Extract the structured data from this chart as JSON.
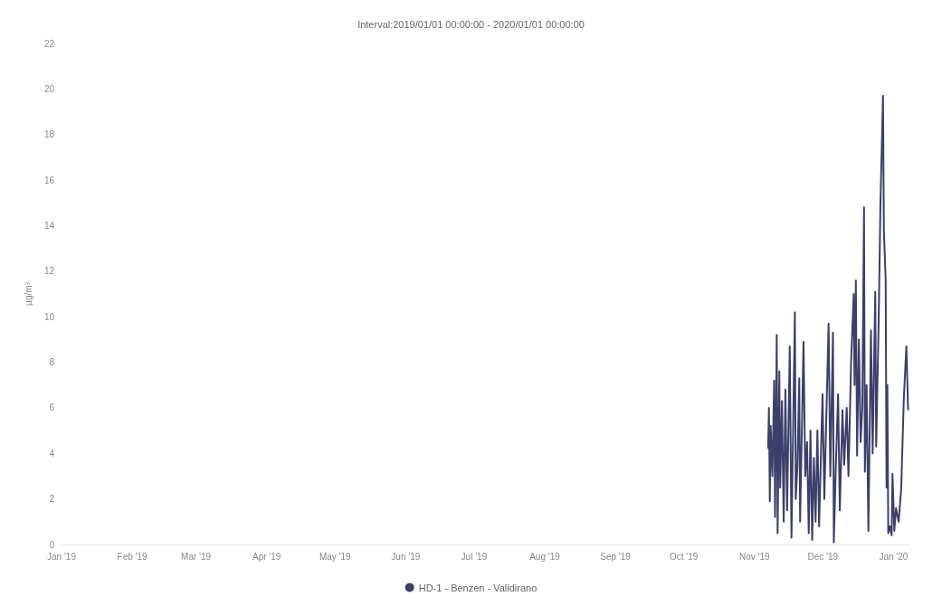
{
  "chart_data": {
    "type": "line",
    "title": "Interval:2019/01/01 00:00:00 - 2020/01/01 00:00:00",
    "ylabel": "µg/m³",
    "x": [
      "2019-11-07T00:00",
      "2019-11-07T09:00",
      "2019-11-07T18:00",
      "2019-11-08T03:00",
      "2019-11-08T21:00",
      "2019-11-09T16:00",
      "2019-11-10T01:00",
      "2019-11-10T19:00",
      "2019-11-11T04:00",
      "2019-11-11T22:00",
      "2019-11-12T07:00",
      "2019-11-13T02:00",
      "2019-11-13T20:00",
      "2019-11-14T14:00",
      "2019-11-15T08:00",
      "2019-11-16T12:00",
      "2019-11-17T06:00",
      "2019-11-18T18:00",
      "2019-11-19T03:00",
      "2019-11-19T21:00",
      "2019-11-20T16:00",
      "2019-11-21T01:00",
      "2019-11-22T13:00",
      "2019-11-23T07:00",
      "2019-11-24T02:00",
      "2019-11-24T20:00",
      "2019-11-25T14:00",
      "2019-11-26T08:00",
      "2019-11-27T02:00",
      "2019-11-27T20:00",
      "2019-11-28T15:00",
      "2019-11-29T09:00",
      "2019-11-30T21:00",
      "2019-12-01T16:00",
      "2019-12-03T13:00",
      "2019-12-04T07:00",
      "2019-12-05T11:00",
      "2019-12-05T20:00",
      "2019-12-06T14:00",
      "2019-12-07T17:00",
      "2019-12-08T11:00",
      "2019-12-09T15:00",
      "2019-12-10T09:00",
      "2019-12-11T12:00",
      "2019-12-12T06:00",
      "2019-12-13T10:00",
      "2019-12-14T13:00",
      "2019-12-14T22:00",
      "2019-12-15T12:00",
      "2019-12-16T01:00",
      "2019-12-16T20:00",
      "2019-12-17T14:00",
      "2019-12-18T08:00",
      "2019-12-19T02:00",
      "2019-12-19T11:00",
      "2019-12-20T05:00",
      "2019-12-21T00:00",
      "2019-12-22T03:00",
      "2019-12-22T21:00",
      "2019-12-24T00:00",
      "2019-12-24T10:00",
      "2019-12-25T13:00",
      "2019-12-26T07:00",
      "2019-12-27T10:00",
      "2019-12-27T19:00",
      "2019-12-28T14:00",
      "2019-12-28T23:00",
      "2019-12-29T08:00",
      "2019-12-29T17:00",
      "2019-12-30T11:00",
      "2019-12-31T05:00",
      "2019-12-31T14:00",
      "2020-01-01T09:00",
      "2020-01-02T03:00",
      "2020-01-03T06:00",
      "2020-01-04T09:00",
      "2020-01-05T13:00",
      "2020-01-06T16:00",
      "2020-01-07T10:00"
    ],
    "series": [
      {
        "name": "HD-1 - Benzen - Validirano",
        "color": "#3b3f6b",
        "values": [
          4.2,
          6.0,
          1.9,
          5.2,
          3.0,
          7.2,
          1.2,
          9.2,
          0.5,
          7.6,
          2.5,
          6.3,
          1.0,
          6.8,
          1.5,
          8.7,
          0.3,
          10.2,
          2.0,
          3.5,
          7.3,
          1.0,
          8.9,
          3.0,
          4.5,
          0.5,
          5.0,
          0.2,
          3.8,
          1.0,
          5.0,
          0.8,
          6.6,
          2.0,
          9.7,
          3.0,
          9.3,
          0.1,
          3.0,
          6.6,
          1.5,
          5.9,
          3.5,
          6.0,
          3.0,
          8.0,
          11.0,
          7.0,
          11.6,
          3.9,
          9.0,
          4.5,
          6.0,
          14.8,
          3.2,
          7.0,
          0.6,
          9.4,
          4.0,
          11.1,
          4.3,
          10.0,
          15.0,
          19.7,
          13.8,
          11.6,
          2.5,
          7.0,
          0.5,
          0.8,
          0.4,
          3.1,
          0.6,
          1.6,
          1.0,
          2.4,
          6.4,
          8.7,
          5.9
        ]
      }
    ],
    "xlim": [
      "2019-01-01",
      "2020-01-08"
    ],
    "xticks": [
      {
        "value": "2019-01-01",
        "label": "Jan '19"
      },
      {
        "value": "2019-02-01",
        "label": "Feb '19"
      },
      {
        "value": "2019-03-01",
        "label": "Mar '19"
      },
      {
        "value": "2019-04-01",
        "label": "Apr '19"
      },
      {
        "value": "2019-05-01",
        "label": "May '19"
      },
      {
        "value": "2019-06-01",
        "label": "Jun '19"
      },
      {
        "value": "2019-07-01",
        "label": "Jul '19"
      },
      {
        "value": "2019-08-01",
        "label": "Aug '19"
      },
      {
        "value": "2019-09-01",
        "label": "Sep '19"
      },
      {
        "value": "2019-10-01",
        "label": "Oct '19"
      },
      {
        "value": "2019-11-01",
        "label": "Nov '19"
      },
      {
        "value": "2019-12-01",
        "label": "Dec '19"
      },
      {
        "value": "2020-01-01",
        "label": "Jan '20"
      }
    ],
    "ylim": [
      0,
      22
    ],
    "yticks": [
      0,
      2,
      4,
      6,
      8,
      10,
      12,
      14,
      16,
      18,
      20,
      22
    ],
    "legend": "bottom",
    "grid": false
  }
}
